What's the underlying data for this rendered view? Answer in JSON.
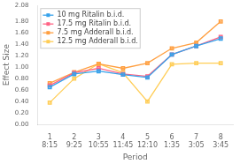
{
  "chart_data": {
    "type": "line",
    "x": [
      1,
      2,
      3,
      4,
      5,
      6,
      7,
      8
    ],
    "series": [
      {
        "name": "10 mg Ritalin b.i.d.",
        "values": [
          0.65,
          0.88,
          0.93,
          0.87,
          0.82,
          1.22,
          1.37,
          1.5
        ]
      },
      {
        "name": "17.5 mg Ritalin b.i.d.",
        "values": [
          0.68,
          0.9,
          0.98,
          0.88,
          0.84,
          1.22,
          1.37,
          1.53
        ]
      },
      {
        "name": "7.5 mg Adderall b.i.d.",
        "values": [
          0.72,
          0.91,
          1.06,
          0.98,
          1.07,
          1.33,
          1.43,
          1.8
        ]
      },
      {
        "name": "12.5 mg Adderall b.i.d.",
        "values": [
          0.38,
          0.8,
          1.06,
          0.9,
          0.4,
          1.05,
          1.07,
          1.07
        ]
      }
    ],
    "xlabel": "Period",
    "ylabel": "Effect Size",
    "xlim": [
      0.5,
      8.5
    ],
    "xticks": [
      {
        "value": 1,
        "label": "1\n8:15"
      },
      {
        "value": 2,
        "label": "2\n9:25"
      },
      {
        "value": 3,
        "label": "3\n10:55"
      },
      {
        "value": 4,
        "label": "4\n11:45"
      },
      {
        "value": 5,
        "label": "5\n12:10"
      },
      {
        "value": 6,
        "label": "6\n1:35"
      },
      {
        "value": 7,
        "label": "7\n3:05"
      },
      {
        "value": 8,
        "label": "8\n3:45"
      }
    ],
    "ylim": [
      0.0,
      2.08
    ],
    "yticks": [
      {
        "value": 0.0,
        "label": "0.00"
      },
      {
        "value": 0.2,
        "label": "0.20"
      },
      {
        "value": 0.4,
        "label": "0.40"
      },
      {
        "value": 0.6,
        "label": "0.60"
      },
      {
        "value": 0.8,
        "label": "0.80"
      },
      {
        "value": 1.0,
        "label": "1.00"
      },
      {
        "value": 1.2,
        "label": "1.20"
      },
      {
        "value": 1.4,
        "label": "1.40"
      },
      {
        "value": 1.6,
        "label": "1.60"
      },
      {
        "value": 1.8,
        "label": "1.80"
      },
      {
        "value": 2.08,
        "label": "2.08"
      }
    ],
    "grid": false,
    "legend": "upper left",
    "marker": "square",
    "line_style": "solid"
  }
}
